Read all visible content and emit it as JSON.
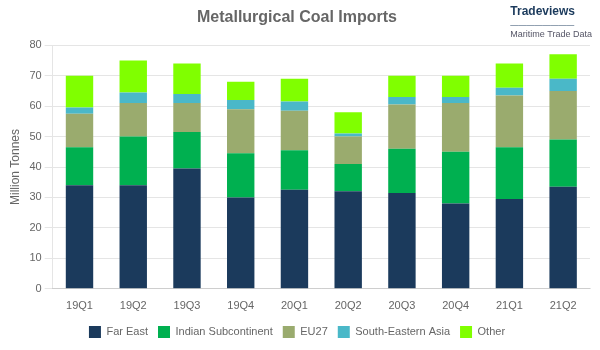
{
  "chart_data": {
    "type": "bar",
    "stacked": true,
    "title": "Metallurgical Coal Imports",
    "ylabel": "Million Tonnes",
    "categories": [
      "19Q1",
      "19Q2",
      "19Q3",
      "19Q4",
      "20Q1",
      "20Q2",
      "20Q3",
      "20Q4",
      "21Q1",
      "21Q2"
    ],
    "series": [
      {
        "name": "Far East",
        "color": "#1b3a5c",
        "values": [
          34,
          34,
          39.5,
          30,
          32.5,
          32,
          31.5,
          28,
          29.5,
          33.5
        ]
      },
      {
        "name": "Indian Subcontinent",
        "color": "#00b050",
        "values": [
          12.5,
          16,
          12,
          14.5,
          13,
          9,
          14.5,
          17,
          17,
          15.5
        ]
      },
      {
        "name": "EU27",
        "color": "#9aab6e",
        "values": [
          11,
          11,
          9.5,
          14.5,
          13,
          9,
          14.5,
          16,
          17,
          16
        ]
      },
      {
        "name": "South-Eastern Asia",
        "color": "#4ab8c8",
        "values": [
          2,
          3.5,
          3,
          3,
          3,
          1,
          2.5,
          2,
          2.5,
          4
        ]
      },
      {
        "name": "Other",
        "color": "#80ff00",
        "values": [
          10.5,
          10.5,
          10,
          6,
          7.5,
          7,
          7,
          7,
          8,
          8
        ]
      }
    ],
    "ylim": [
      0,
      80
    ],
    "yticks": [
      0,
      10,
      20,
      30,
      40,
      50,
      60,
      70,
      80
    ],
    "grid": true,
    "legend": "bottom",
    "annotations": [
      "Tradeviews",
      "————————",
      "Maritime Trade Data"
    ]
  }
}
